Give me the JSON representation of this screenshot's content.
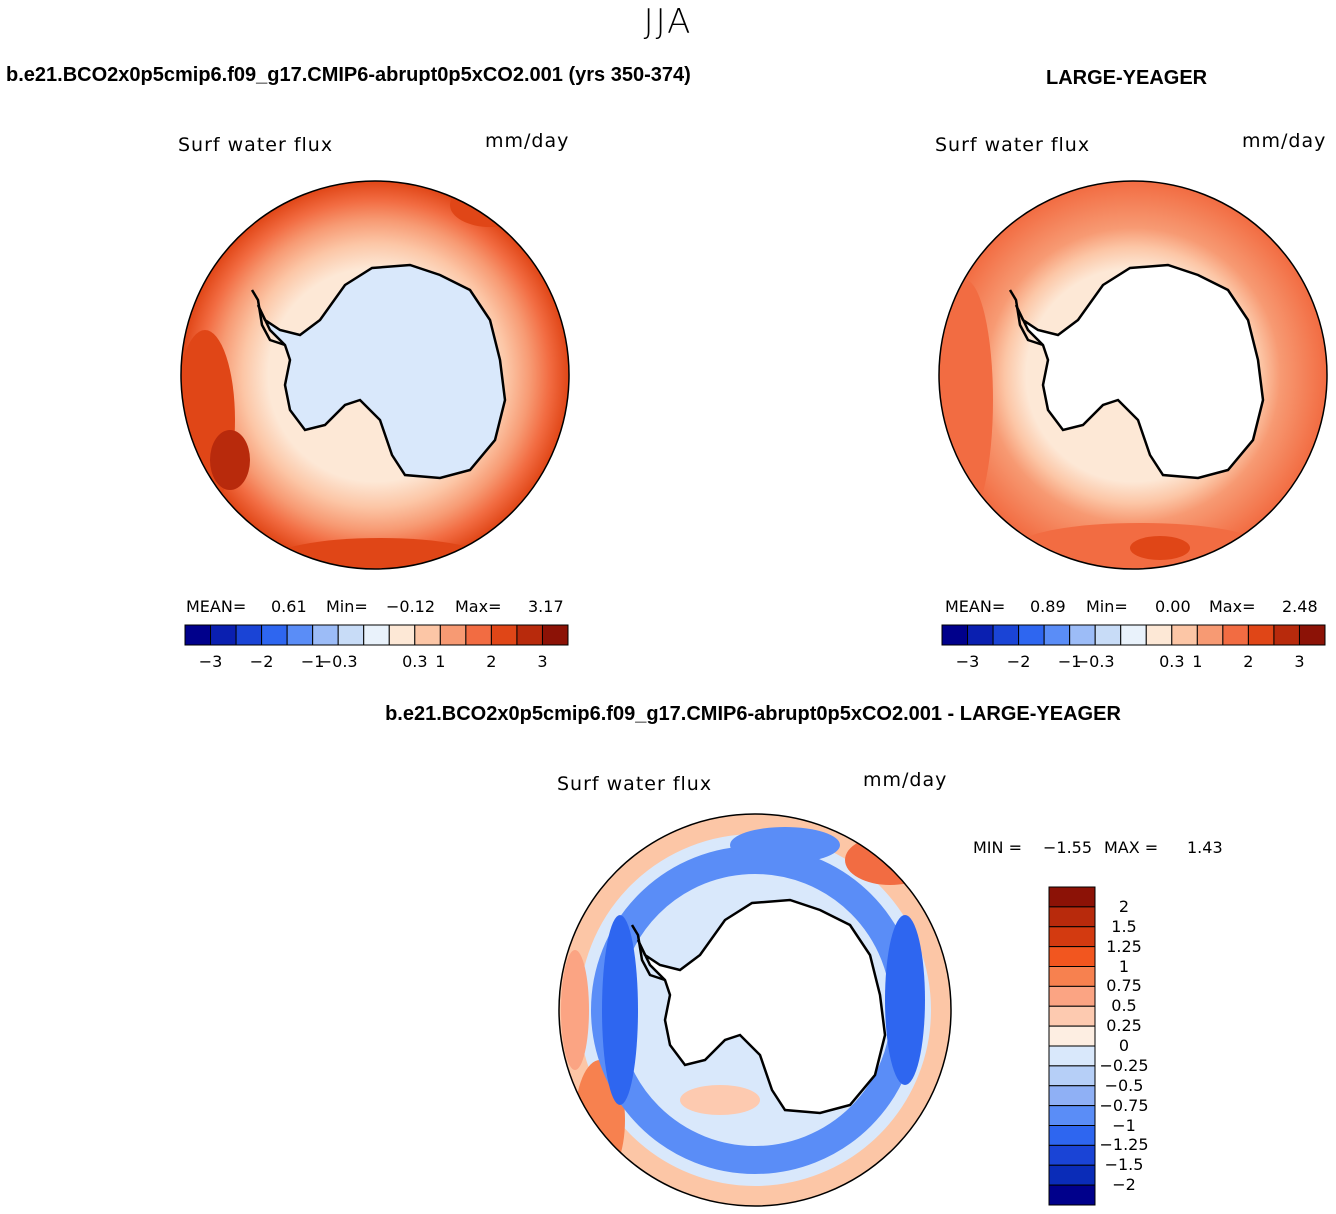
{
  "figure_title": "JJA",
  "panel1": {
    "title": "b.e21.BCO2x0p5cmip6.f09_g17.CMIP6-abrupt0p5xCO2.001 (yrs 350-374)",
    "variable": "Surf water flux",
    "units": "mm/day",
    "stats": {
      "mean_label": "MEAN=",
      "mean": "0.61",
      "min_label": "Min=",
      "min": "−0.12",
      "max_label": "Max=",
      "max": "3.17"
    }
  },
  "panel2": {
    "title": "LARGE-YEAGER",
    "variable": "Surf water flux",
    "units": "mm/day",
    "stats": {
      "mean_label": "MEAN=",
      "mean": "0.89",
      "min_label": "Min=",
      "min": "0.00",
      "max_label": "Max=",
      "max": "2.48"
    }
  },
  "panel3": {
    "title": "b.e21.BCO2x0p5cmip6.f09_g17.CMIP6-abrupt0p5xCO2.001 - LARGE-YEAGER",
    "variable": "Surf water flux",
    "units": "mm/day",
    "stats": {
      "min_label": "MIN =",
      "min": "−1.55",
      "max_label": "MAX =",
      "max": "1.43"
    }
  },
  "chart_data": [
    {
      "type": "heatmap",
      "title": "b.e21.BCO2x0p5cmip6.f09_g17.CMIP6-abrupt0p5xCO2.001 (yrs 350-374)",
      "variable": "Surf water flux",
      "units": "mm/day",
      "projection": "south polar stereographic",
      "stats": {
        "mean": 0.61,
        "min": -0.12,
        "max": 3.17
      },
      "colorbar_ticks": [
        "−3",
        "−2",
        "−1",
        "−0.3",
        "0.3",
        "1",
        "2",
        "3"
      ],
      "colorbar_colors": [
        "#00008b",
        "#0a1fb0",
        "#1a44d6",
        "#2e66f0",
        "#5a8df7",
        "#9cbcf7",
        "#c8dcf7",
        "#e9f2fb",
        "#fde8d6",
        "#fcc6a6",
        "#f79a73",
        "#f26c42",
        "#e04617",
        "#b82a0c",
        "#8c1206"
      ]
    },
    {
      "type": "heatmap",
      "title": "LARGE-YEAGER",
      "variable": "Surf water flux",
      "units": "mm/day",
      "projection": "south polar stereographic",
      "stats": {
        "mean": 0.89,
        "min": 0.0,
        "max": 2.48
      },
      "colorbar_ticks": [
        "−3",
        "−2",
        "−1",
        "−0.3",
        "0.3",
        "1",
        "2",
        "3"
      ],
      "colorbar_colors": [
        "#00008b",
        "#0a1fb0",
        "#1a44d6",
        "#2e66f0",
        "#5a8df7",
        "#9cbcf7",
        "#c8dcf7",
        "#e9f2fb",
        "#fde8d6",
        "#fcc6a6",
        "#f79a73",
        "#f26c42",
        "#e04617",
        "#b82a0c",
        "#8c1206"
      ]
    },
    {
      "type": "heatmap",
      "title": "b.e21.BCO2x0p5cmip6.f09_g17.CMIP6-abrupt0p5xCO2.001 - LARGE-YEAGER",
      "variable": "Surf water flux",
      "units": "mm/day",
      "projection": "south polar stereographic",
      "stats": {
        "min": -1.55,
        "max": 1.43
      },
      "colorbar_ticks": [
        "2",
        "1.5",
        "1.25",
        "1",
        "0.75",
        "0.5",
        "0.25",
        "0",
        "−0.25",
        "−0.5",
        "−0.75",
        "−1",
        "−1.25",
        "−1.5",
        "−2"
      ],
      "colorbar_colors": [
        "#8c1206",
        "#b82a0c",
        "#d33a10",
        "#f2561f",
        "#f7814f",
        "#fba483",
        "#fdcab0",
        "#fdeee2",
        "#d9e8fb",
        "#b6cff7",
        "#8fb0f5",
        "#5a8df7",
        "#2e66f0",
        "#1a44d6",
        "#0a2cb8",
        "#00008b"
      ]
    }
  ]
}
